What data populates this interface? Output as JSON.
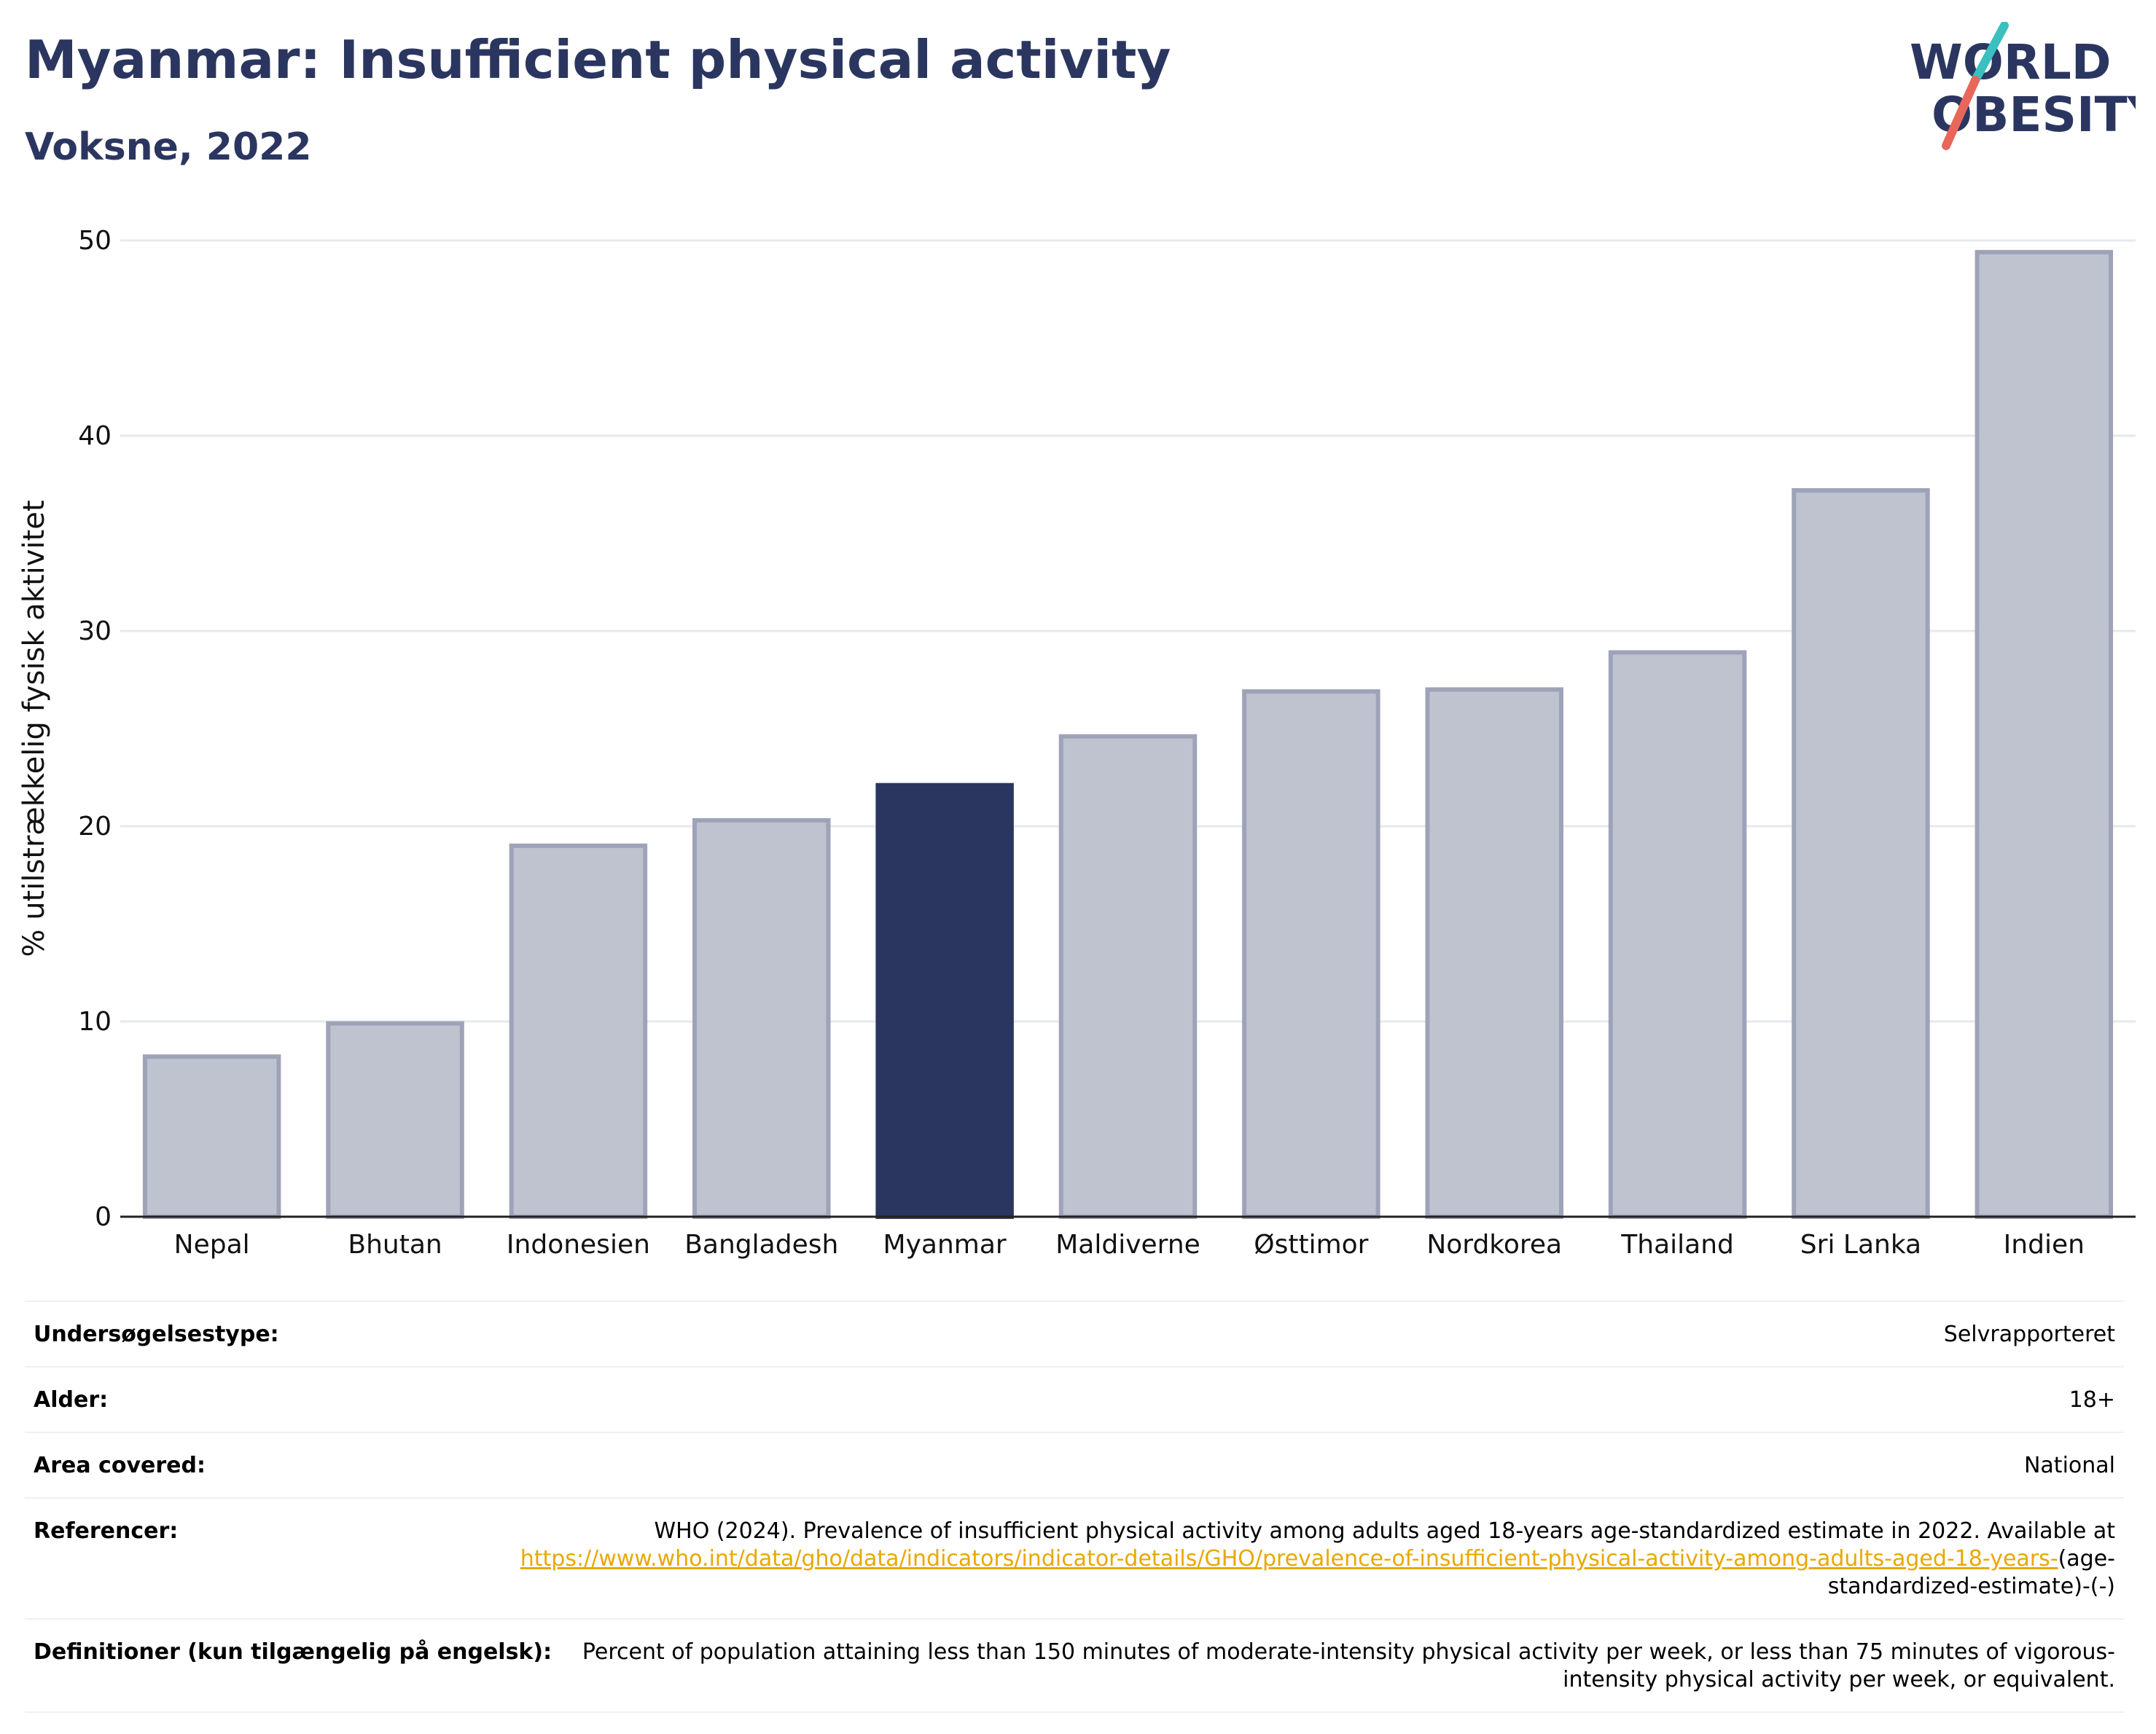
{
  "header": {
    "title": "Myanmar: Insufficient physical activity",
    "subtitle": "Voksne, 2022",
    "logo_line1": "WORLD",
    "logo_line2": "OBESITY"
  },
  "chart_data": {
    "type": "bar",
    "title": "Myanmar: Insufficient physical activity",
    "subtitle": "Voksne, 2022",
    "ylabel": "% utilstrækkelig fysisk aktivitet",
    "xlabel": "",
    "ylim": [
      0,
      50
    ],
    "yticks": [
      0,
      10,
      20,
      30,
      40,
      50
    ],
    "grid": true,
    "categories": [
      "Nepal",
      "Bhutan",
      "Indonesien",
      "Bangladesh",
      "Myanmar",
      "Maldiverne",
      "Østtimor",
      "Nordkorea",
      "Thailand",
      "Sri Lanka",
      "Indien"
    ],
    "values": [
      8.2,
      9.9,
      19.0,
      20.3,
      22.1,
      24.6,
      26.9,
      27.0,
      28.9,
      37.2,
      49.4
    ],
    "highlight": "Myanmar",
    "colors": {
      "bar": "#bfc2cf",
      "bar_border": "#9ea3b8",
      "highlight": "#2b3660",
      "grid": "#e6e8ef",
      "axis": "#222222"
    }
  },
  "info": {
    "survey_label": "Undersøgelsestype:",
    "survey_value": "Selvrapporteret",
    "age_label": "Alder:",
    "age_value": "18+",
    "area_label": "Area covered:",
    "area_value": "National",
    "ref_label": "Referencer:",
    "ref_text": "WHO (2024). Prevalence of insufficient physical activity among adults aged 18-years age-standardized estimate in 2022. Available at",
    "ref_link": "https://www.who.int/data/gho/data/indicators/indicator-details/GHO/prevalence-of-insufficient-physical-activity-among-adults-aged-18-years-",
    "ref_tail": "(age-standardized-estimate)-(-)",
    "def_label": "Definitioner (kun tilgængelig på engelsk):",
    "def_text": "Percent of population attaining less than 150 minutes of moderate-intensity physical activity per week, or less than 75 minutes of vigorous-intensity physical activity per week, or equivalent."
  }
}
